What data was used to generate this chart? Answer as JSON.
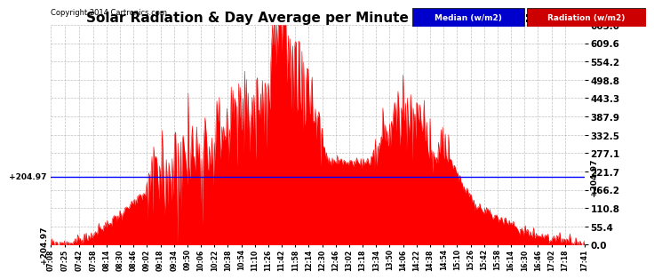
{
  "title": "Solar Radiation & Day Average per Minute  Thu Oct 23 17:54",
  "copyright": "Copyright 2014 Cartronics.com",
  "median_value": 204.97,
  "y_max": 665.0,
  "y_min": 0.0,
  "yticks": [
    0.0,
    55.4,
    110.8,
    166.2,
    221.7,
    277.1,
    332.5,
    387.9,
    443.3,
    498.8,
    554.2,
    609.6,
    665.0
  ],
  "median_color": "#0000ff",
  "radiation_color": "#ff0000",
  "background_color": "#ffffff",
  "legend_median_bg": "#0000cc",
  "legend_radiation_bg": "#cc0000",
  "grid_color": "#c0c0c0",
  "title_fontsize": 11,
  "x_start_minutes": 428,
  "x_end_minutes": 1061,
  "xtick_minutes": [
    428,
    445,
    462,
    478,
    494,
    510,
    526,
    542,
    558,
    574,
    590,
    606,
    622,
    638,
    654,
    670,
    686,
    702,
    718,
    734,
    750,
    766,
    782,
    798,
    814,
    830,
    846,
    862,
    878,
    894,
    910,
    926,
    942,
    958,
    974,
    990,
    1006,
    1022,
    1038,
    1061
  ]
}
